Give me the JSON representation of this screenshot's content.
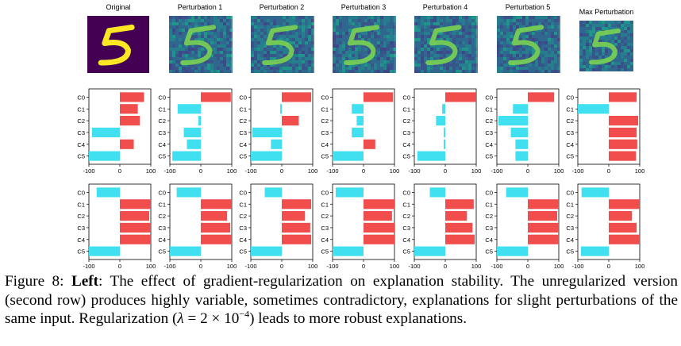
{
  "figure": {
    "image_titles": [
      "Original",
      "Perturbation 1",
      "Perturbation 2",
      "Perturbation 3",
      "Perturbation 4",
      "Perturbation 5",
      "Max Perturbation"
    ],
    "image_content": "digit-5",
    "colors": {
      "positive": "#f24d4d",
      "negative": "#40e0f0",
      "digit_original_bg": "#440154",
      "digit_original_fg": "#fde725"
    }
  },
  "chart_data": [
    {
      "type": "bar",
      "orientation": "horizontal",
      "row": "unregularized",
      "categories": [
        "C0",
        "C1",
        "C2",
        "C3",
        "C4",
        "C5"
      ],
      "xlim": [
        -100,
        100
      ],
      "xticks": [
        "-100",
        "0",
        "100"
      ],
      "panels": [
        [
          78,
          58,
          65,
          -90,
          45,
          -100
        ],
        [
          97,
          -75,
          -8,
          -55,
          -45,
          -92
        ],
        [
          95,
          -5,
          55,
          -95,
          -35,
          -100
        ],
        [
          95,
          -38,
          -22,
          -38,
          38,
          -100
        ],
        [
          98,
          -10,
          -30,
          -5,
          -5,
          -90
        ],
        [
          85,
          -48,
          -95,
          -55,
          -40,
          -40
        ],
        [
          90,
          -100,
          95,
          90,
          92,
          88
        ]
      ]
    },
    {
      "type": "bar",
      "orientation": "horizontal",
      "row": "regularized",
      "categories": [
        "C0",
        "C1",
        "C2",
        "C3",
        "C4",
        "C5"
      ],
      "xlim": [
        -100,
        100
      ],
      "xticks": [
        "-100",
        "0",
        "100"
      ],
      "panels": [
        [
          -75,
          100,
          95,
          100,
          100,
          -100
        ],
        [
          -78,
          100,
          85,
          95,
          100,
          -100
        ],
        [
          -55,
          95,
          75,
          92,
          95,
          -100
        ],
        [
          -90,
          100,
          92,
          100,
          100,
          -100
        ],
        [
          -50,
          92,
          70,
          88,
          95,
          -100
        ],
        [
          -70,
          100,
          95,
          100,
          100,
          -100
        ],
        [
          -88,
          100,
          75,
          90,
          100,
          -90
        ]
      ]
    }
  ],
  "caption": {
    "prefix": "Figure 8: ",
    "bold": "Left",
    "part1": ": The effect of gradient-regularization on explanation stability. The unregularized version (second row) produces highly variable, sometimes contradictory, explanations for slight perturbations of the same input. Regularization (",
    "lambda": "λ",
    "eq": " = 2 × 10",
    "exp": "−4",
    "part2": ") leads to more robust explanations."
  }
}
